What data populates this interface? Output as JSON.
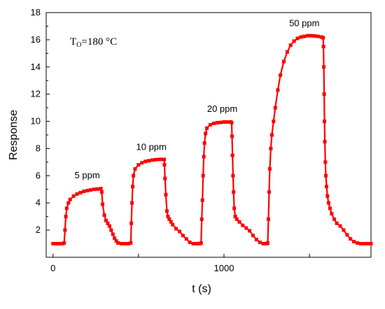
{
  "chart_data": {
    "type": "scatter",
    "title": "",
    "xlabel": "t (s)",
    "ylabel": "Response",
    "xlim": [
      -40,
      1860
    ],
    "ylim": [
      0,
      18
    ],
    "x_ticks": [
      0,
      500,
      1000,
      1500
    ],
    "x_tick_labels": [
      "0",
      "",
      "1000",
      ""
    ],
    "y_ticks": [
      2,
      4,
      6,
      8,
      10,
      12,
      14,
      16,
      18
    ],
    "grid": false,
    "marker": "square",
    "line_connected": true,
    "series_color": "#ff0000",
    "condition_label": {
      "main": "T",
      "subscript": "O",
      "rest": "=180 °C"
    },
    "annotations": [
      {
        "text": "5 ppm",
        "x": 200,
        "y": 5.8
      },
      {
        "text": "10 ppm",
        "x": 575,
        "y": 7.9
      },
      {
        "text": "20 ppm",
        "x": 990,
        "y": 10.7
      },
      {
        "text": "50 ppm",
        "x": 1470,
        "y": 17.0
      }
    ],
    "series": [
      {
        "gas_cycles": [
          {
            "concentration": "5 ppm",
            "baseline": 1.0,
            "t_on": 65,
            "t_off": 285,
            "peak": 5.05,
            "rise_tau": 22,
            "plateau": 285,
            "recovery_to": 440
          },
          {
            "concentration": "10 ppm",
            "baseline": 1.0,
            "t_on": 455,
            "t_off": 650,
            "peak": 7.2,
            "rise_tau": 18,
            "recovery_to": 860
          },
          {
            "concentration": "20 ppm",
            "baseline": 1.0,
            "t_on": 865,
            "t_off": 1045,
            "peak": 9.95,
            "rise_tau": 16,
            "recovery_to": 1240
          },
          {
            "concentration": "50 ppm",
            "baseline": 1.0,
            "t_on": 1255,
            "t_off": 1580,
            "peak": 16.3,
            "rise_tau": 65,
            "recovery_to": 1860
          }
        ],
        "points": [
          [
            0,
            1.0
          ],
          [
            20,
            1.0
          ],
          [
            40,
            1.0
          ],
          [
            55,
            1.0
          ],
          [
            65,
            1.05
          ],
          [
            70,
            2.0
          ],
          [
            75,
            3.0
          ],
          [
            80,
            3.6
          ],
          [
            90,
            4.0
          ],
          [
            100,
            4.25
          ],
          [
            120,
            4.5
          ],
          [
            140,
            4.65
          ],
          [
            160,
            4.75
          ],
          [
            180,
            4.85
          ],
          [
            200,
            4.9
          ],
          [
            220,
            4.95
          ],
          [
            240,
            5.0
          ],
          [
            260,
            5.02
          ],
          [
            280,
            5.05
          ],
          [
            285,
            4.8
          ],
          [
            290,
            3.9
          ],
          [
            300,
            3.1
          ],
          [
            310,
            2.7
          ],
          [
            320,
            2.5
          ],
          [
            330,
            2.3
          ],
          [
            340,
            2.0
          ],
          [
            350,
            1.7
          ],
          [
            360,
            1.4
          ],
          [
            370,
            1.2
          ],
          [
            380,
            1.05
          ],
          [
            400,
            1.0
          ],
          [
            420,
            1.0
          ],
          [
            440,
            1.0
          ],
          [
            455,
            1.05
          ],
          [
            458,
            2.5
          ],
          [
            462,
            4.0
          ],
          [
            466,
            5.2
          ],
          [
            470,
            6.0
          ],
          [
            480,
            6.5
          ],
          [
            500,
            6.8
          ],
          [
            520,
            6.95
          ],
          [
            540,
            7.05
          ],
          [
            560,
            7.1
          ],
          [
            580,
            7.15
          ],
          [
            600,
            7.18
          ],
          [
            620,
            7.2
          ],
          [
            640,
            7.2
          ],
          [
            650,
            7.2
          ],
          [
            652,
            6.8
          ],
          [
            655,
            5.8
          ],
          [
            660,
            4.6
          ],
          [
            666,
            3.4
          ],
          [
            672,
            3.0
          ],
          [
            680,
            2.8
          ],
          [
            690,
            2.6
          ],
          [
            700,
            2.4
          ],
          [
            720,
            2.1
          ],
          [
            740,
            1.9
          ],
          [
            760,
            1.6
          ],
          [
            780,
            1.35
          ],
          [
            800,
            1.1
          ],
          [
            820,
            1.0
          ],
          [
            840,
            1.0
          ],
          [
            860,
            1.0
          ],
          [
            866,
            1.05
          ],
          [
            870,
            2.8
          ],
          [
            874,
            4.2
          ],
          [
            878,
            6.0
          ],
          [
            882,
            7.4
          ],
          [
            886,
            8.4
          ],
          [
            892,
            9.1
          ],
          [
            900,
            9.5
          ],
          [
            920,
            9.75
          ],
          [
            940,
            9.85
          ],
          [
            960,
            9.9
          ],
          [
            980,
            9.92
          ],
          [
            1000,
            9.95
          ],
          [
            1020,
            9.95
          ],
          [
            1040,
            9.95
          ],
          [
            1045,
            9.9
          ],
          [
            1047,
            8.9
          ],
          [
            1050,
            7.5
          ],
          [
            1053,
            6.0
          ],
          [
            1056,
            4.8
          ],
          [
            1060,
            3.6
          ],
          [
            1066,
            3.0
          ],
          [
            1075,
            2.8
          ],
          [
            1090,
            2.6
          ],
          [
            1110,
            2.35
          ],
          [
            1130,
            2.15
          ],
          [
            1150,
            1.95
          ],
          [
            1170,
            1.6
          ],
          [
            1190,
            1.3
          ],
          [
            1210,
            1.1
          ],
          [
            1230,
            1.0
          ],
          [
            1250,
            1.0
          ],
          [
            1256,
            1.05
          ],
          [
            1260,
            2.8
          ],
          [
            1264,
            4.8
          ],
          [
            1268,
            6.5
          ],
          [
            1274,
            8.0
          ],
          [
            1280,
            9.0
          ],
          [
            1290,
            10.0
          ],
          [
            1300,
            11.0
          ],
          [
            1315,
            12.3
          ],
          [
            1330,
            13.4
          ],
          [
            1350,
            14.4
          ],
          [
            1370,
            15.1
          ],
          [
            1390,
            15.6
          ],
          [
            1410,
            15.9
          ],
          [
            1430,
            16.1
          ],
          [
            1450,
            16.2
          ],
          [
            1470,
            16.25
          ],
          [
            1490,
            16.3
          ],
          [
            1510,
            16.3
          ],
          [
            1530,
            16.28
          ],
          [
            1550,
            16.25
          ],
          [
            1570,
            16.2
          ],
          [
            1580,
            16.15
          ],
          [
            1582,
            15.5
          ],
          [
            1584,
            14.0
          ],
          [
            1586,
            12.0
          ],
          [
            1588,
            10.0
          ],
          [
            1590,
            8.5
          ],
          [
            1593,
            7.0
          ],
          [
            1596,
            6.0
          ],
          [
            1600,
            5.2
          ],
          [
            1605,
            4.5
          ],
          [
            1612,
            4.0
          ],
          [
            1620,
            3.6
          ],
          [
            1630,
            3.2
          ],
          [
            1645,
            2.8
          ],
          [
            1660,
            2.5
          ],
          [
            1680,
            2.3
          ],
          [
            1700,
            2.0
          ],
          [
            1720,
            1.65
          ],
          [
            1740,
            1.35
          ],
          [
            1760,
            1.15
          ],
          [
            1780,
            1.05
          ],
          [
            1800,
            1.0
          ],
          [
            1820,
            1.0
          ],
          [
            1840,
            1.0
          ],
          [
            1860,
            1.0
          ]
        ]
      }
    ]
  }
}
